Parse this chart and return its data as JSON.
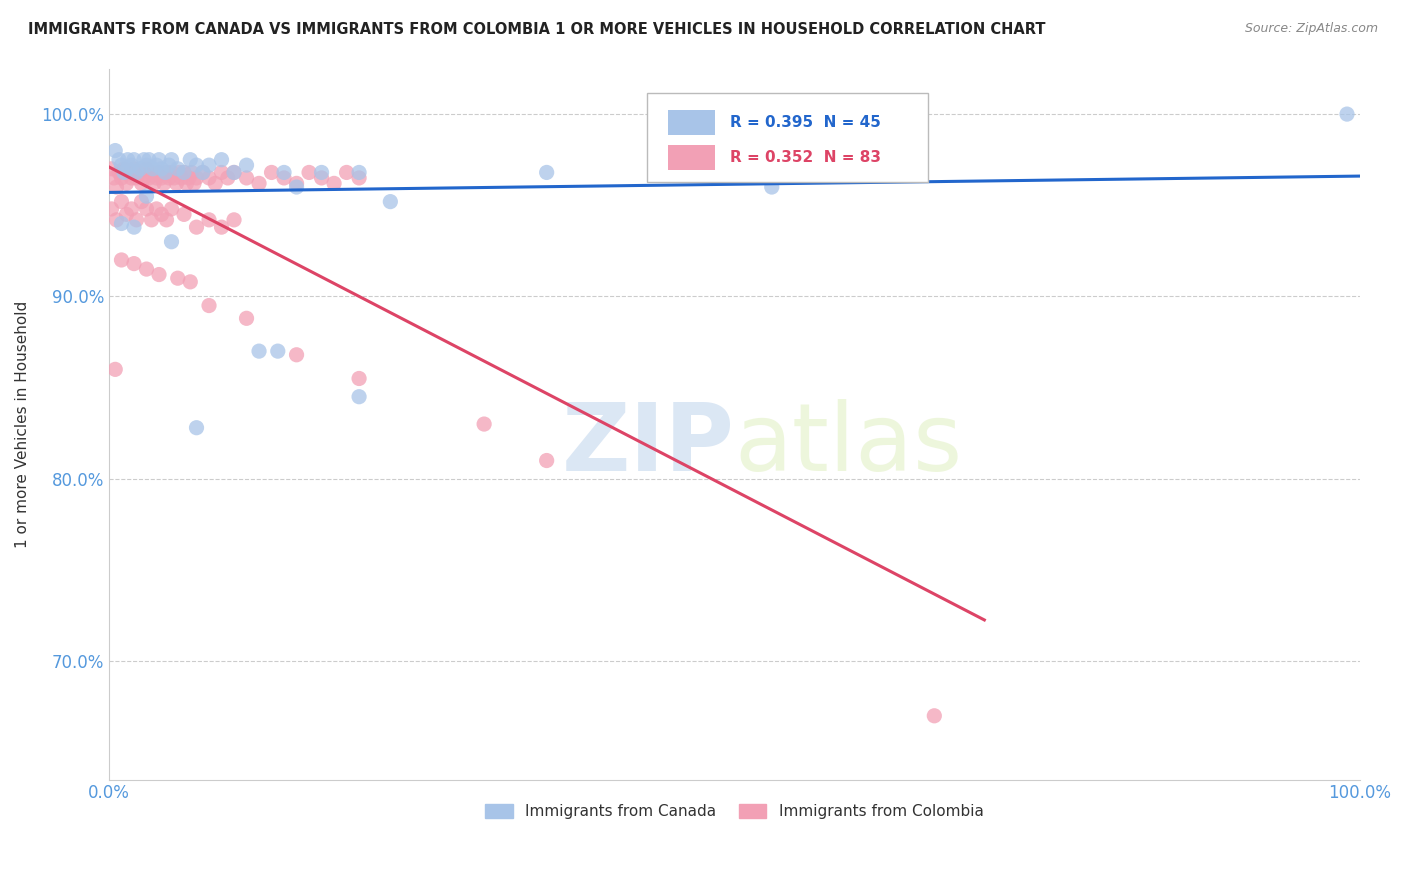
{
  "title": "IMMIGRANTS FROM CANADA VS IMMIGRANTS FROM COLOMBIA 1 OR MORE VEHICLES IN HOUSEHOLD CORRELATION CHART",
  "source": "Source: ZipAtlas.com",
  "ylabel": "1 or more Vehicles in Household",
  "canada_color": "#a8c4e8",
  "colombia_color": "#f2a0b5",
  "canada_line_color": "#2266cc",
  "colombia_line_color": "#dd4466",
  "canada_R": 0.395,
  "canada_N": 45,
  "colombia_R": 0.352,
  "colombia_N": 83,
  "legend_label_canada": "Immigrants from Canada",
  "legend_label_colombia": "Immigrants from Colombia",
  "canada_x": [
    0.005,
    0.008,
    0.01,
    0.012,
    0.015,
    0.015,
    0.018,
    0.02,
    0.022,
    0.025,
    0.028,
    0.03,
    0.032,
    0.035,
    0.038,
    0.04,
    0.042,
    0.045,
    0.048,
    0.05,
    0.055,
    0.06,
    0.065,
    0.07,
    0.075,
    0.08,
    0.09,
    0.1,
    0.11,
    0.12,
    0.135,
    0.15,
    0.17,
    0.2,
    0.225,
    0.01,
    0.02,
    0.03,
    0.05,
    0.07,
    0.14,
    0.2,
    0.35,
    0.53,
    0.99
  ],
  "canada_y": [
    0.98,
    0.975,
    0.972,
    0.968,
    0.975,
    0.97,
    0.972,
    0.975,
    0.968,
    0.97,
    0.975,
    0.972,
    0.975,
    0.97,
    0.972,
    0.975,
    0.97,
    0.968,
    0.972,
    0.975,
    0.97,
    0.968,
    0.975,
    0.972,
    0.968,
    0.972,
    0.975,
    0.968,
    0.972,
    0.87,
    0.87,
    0.96,
    0.968,
    0.968,
    0.952,
    0.94,
    0.938,
    0.955,
    0.93,
    0.828,
    0.968,
    0.845,
    0.968,
    0.96,
    1.0
  ],
  "colombia_x": [
    0.002,
    0.004,
    0.006,
    0.008,
    0.01,
    0.012,
    0.014,
    0.016,
    0.018,
    0.02,
    0.022,
    0.024,
    0.026,
    0.028,
    0.03,
    0.032,
    0.034,
    0.036,
    0.038,
    0.04,
    0.042,
    0.044,
    0.046,
    0.048,
    0.05,
    0.052,
    0.054,
    0.056,
    0.058,
    0.06,
    0.062,
    0.064,
    0.066,
    0.068,
    0.07,
    0.075,
    0.08,
    0.085,
    0.09,
    0.095,
    0.1,
    0.11,
    0.12,
    0.13,
    0.14,
    0.15,
    0.16,
    0.17,
    0.18,
    0.19,
    0.2,
    0.002,
    0.006,
    0.01,
    0.014,
    0.018,
    0.022,
    0.026,
    0.03,
    0.034,
    0.038,
    0.042,
    0.046,
    0.05,
    0.06,
    0.07,
    0.08,
    0.09,
    0.1,
    0.01,
    0.02,
    0.03,
    0.04,
    0.055,
    0.065,
    0.08,
    0.11,
    0.15,
    0.2,
    0.3,
    0.35,
    0.005,
    0.66
  ],
  "colombia_y": [
    0.97,
    0.965,
    0.96,
    0.968,
    0.965,
    0.97,
    0.962,
    0.968,
    0.965,
    0.97,
    0.965,
    0.968,
    0.962,
    0.965,
    0.97,
    0.965,
    0.968,
    0.962,
    0.965,
    0.968,
    0.965,
    0.962,
    0.968,
    0.965,
    0.968,
    0.965,
    0.962,
    0.968,
    0.965,
    0.968,
    0.962,
    0.965,
    0.968,
    0.962,
    0.965,
    0.968,
    0.965,
    0.962,
    0.968,
    0.965,
    0.968,
    0.965,
    0.962,
    0.968,
    0.965,
    0.962,
    0.968,
    0.965,
    0.962,
    0.968,
    0.965,
    0.948,
    0.942,
    0.952,
    0.945,
    0.948,
    0.942,
    0.952,
    0.948,
    0.942,
    0.948,
    0.945,
    0.942,
    0.948,
    0.945,
    0.938,
    0.942,
    0.938,
    0.942,
    0.92,
    0.918,
    0.915,
    0.912,
    0.91,
    0.908,
    0.895,
    0.888,
    0.868,
    0.855,
    0.83,
    0.81,
    0.86,
    0.67
  ],
  "xlim": [
    0.0,
    1.0
  ],
  "ylim": [
    0.635,
    1.025
  ],
  "ytick_positions": [
    0.7,
    0.8,
    0.9,
    1.0
  ],
  "ytick_labels": [
    "70.0%",
    "80.0%",
    "90.0%",
    "100.0%"
  ]
}
